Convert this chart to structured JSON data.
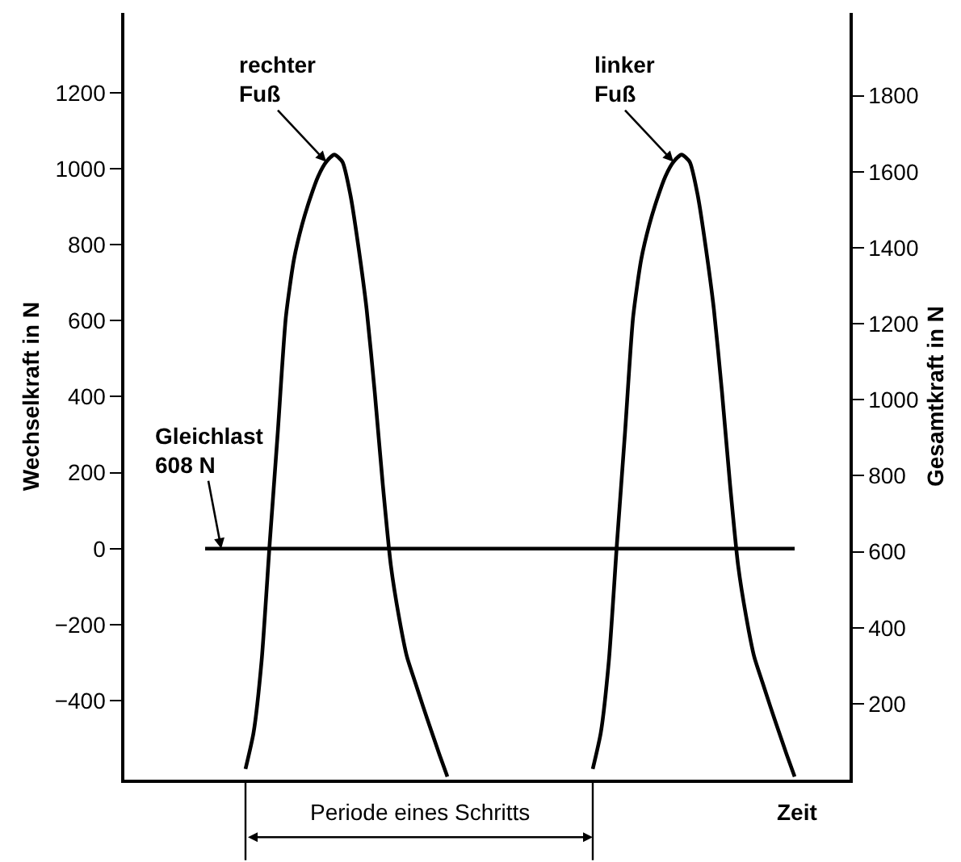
{
  "chart_data": {
    "type": "line",
    "xlabel": "Zeit",
    "ylabel": "Wechselkraft in N",
    "y2label": "Gesamtkraft in N",
    "categories": [
      null,
      null,
      null,
      null,
      null,
      null,
      null,
      null,
      null,
      null,
      null,
      null,
      null,
      null,
      null,
      null,
      null,
      null,
      null,
      null,
      null,
      null,
      null,
      null,
      null,
      null,
      null,
      null,
      null,
      null,
      null,
      null,
      null,
      null,
      null,
      null,
      null,
      null,
      null,
      null,
      null,
      null,
      null,
      null,
      null,
      null,
      null,
      null,
      null,
      null,
      null,
      null,
      null,
      null,
      null,
      null,
      null,
      null,
      null,
      null,
      null,
      null,
      null,
      null,
      null,
      null,
      null,
      null,
      null,
      null,
      null,
      null,
      null,
      null,
      null,
      null,
      null,
      null,
      null,
      null,
      null,
      null,
      null,
      null,
      null,
      null,
      null,
      null,
      null,
      null
    ],
    "series": [
      {
        "name": "rechter\nFuß",
        "color": "#000000",
        "values": [
          null,
          null,
          null,
          null,
          null,
          null,
          null,
          null,
          null,
          null,
          null,
          null,
          null,
          null,
          null,
          -580,
          -484,
          -294,
          15,
          307,
          610,
          761,
          852,
          922,
          980,
          1018,
          1037,
          1018,
          930,
          792,
          630,
          413,
          169,
          -44,
          -179,
          -285,
          -351,
          -416,
          -479,
          -541,
          -600,
          null,
          null,
          null,
          null,
          null,
          null,
          null,
          null,
          null,
          null,
          null,
          null,
          null,
          null,
          null,
          null,
          null,
          null,
          null,
          null,
          null,
          null,
          null,
          null,
          null,
          null,
          null,
          null,
          null,
          null,
          null,
          null,
          null,
          null,
          null,
          null,
          null,
          null,
          null,
          null,
          null,
          null,
          null,
          null,
          null,
          null,
          null,
          null,
          null
        ]
      },
      {
        "name": "linker\nFuß",
        "color": "#000000",
        "values": [
          null,
          null,
          null,
          null,
          null,
          null,
          null,
          null,
          null,
          null,
          null,
          null,
          null,
          null,
          null,
          null,
          null,
          null,
          null,
          null,
          null,
          null,
          null,
          null,
          null,
          null,
          null,
          null,
          null,
          null,
          null,
          null,
          null,
          null,
          null,
          null,
          null,
          null,
          null,
          null,
          null,
          null,
          null,
          null,
          null,
          null,
          null,
          null,
          null,
          null,
          null,
          null,
          null,
          null,
          null,
          null,
          null,
          null,
          -580,
          -484,
          -294,
          15,
          307,
          610,
          761,
          852,
          922,
          980,
          1018,
          1037,
          1018,
          930,
          792,
          630,
          413,
          169,
          -44,
          -179,
          -285,
          -351,
          -416,
          -479,
          -541,
          -600,
          null,
          null,
          null,
          null,
          null,
          null
        ]
      },
      {
        "name": "Gleichlast\n608 N",
        "color": "#000000",
        "values": [
          null,
          null,
          null,
          null,
          null,
          null,
          null,
          null,
          null,
          null,
          0,
          0,
          0,
          0,
          0,
          0,
          0,
          0,
          0,
          0,
          0,
          0,
          0,
          0,
          0,
          0,
          0,
          0,
          0,
          0,
          0,
          0,
          0,
          0,
          0,
          0,
          0,
          0,
          0,
          0,
          0,
          0,
          0,
          0,
          0,
          0,
          0,
          0,
          0,
          0,
          0,
          0,
          0,
          0,
          0,
          0,
          0,
          0,
          0,
          0,
          0,
          0,
          0,
          0,
          0,
          0,
          0,
          0,
          0,
          0,
          0,
          0,
          0,
          0,
          0,
          0,
          0,
          0,
          0,
          0,
          0,
          0,
          0,
          0,
          null,
          null,
          null,
          null,
          null,
          null
        ]
      }
    ],
    "annotations": [
      "Periode eines Schritts"
    ],
    "ylim": [
      -608,
      1410
    ],
    "yticks": [
      -400,
      -200,
      0,
      200,
      400,
      600,
      800,
      1000,
      1200
    ],
    "y2lim": [
      0,
      2018
    ],
    "y2ticks": [
      200,
      400,
      600,
      800,
      1000,
      1200,
      1400,
      1600,
      1800
    ],
    "grid": false,
    "legend": false,
    "marker": "none",
    "line_style": "solid"
  }
}
